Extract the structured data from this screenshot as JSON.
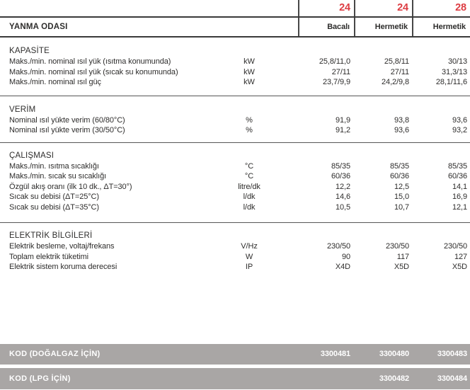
{
  "colors": {
    "accent_red": "#dd3d43",
    "bar_gray": "#a9a6a5",
    "text": "#2e2d2c"
  },
  "header": {
    "models": [
      "24",
      "24",
      "28"
    ],
    "row_label": "YANMA ODASI",
    "types": [
      "Bacalı",
      "Hermetik",
      "Hermetik"
    ]
  },
  "sections": [
    {
      "title": "KAPASİTE",
      "rows": [
        {
          "label": "Maks./min. nominal ısıl yük (ısıtma konumunda)",
          "unit": "kW",
          "values": [
            "25,8/11,0",
            "25,8/11",
            "30/13"
          ]
        },
        {
          "label": "Maks./min. nominal ısıl yük (sıcak su konumunda)",
          "unit": "kW",
          "values": [
            "27/11",
            "27/11",
            "31,3/13"
          ]
        },
        {
          "label": "Maks./min. nominal ısıl güç",
          "unit": "kW",
          "values": [
            "23,7/9,9",
            "24,2/9,8",
            "28,1/11,6"
          ]
        }
      ]
    },
    {
      "title": "VERİM",
      "rows": [
        {
          "label": "Nominal ısıl yükte verim (60/80°C)",
          "unit": "%",
          "values": [
            "91,9",
            "93,8",
            "93,6"
          ]
        },
        {
          "label": "Nominal ısıl yükte verim (30/50°C)",
          "unit": "%",
          "values": [
            "91,2",
            "93,6",
            "93,2"
          ]
        }
      ]
    },
    {
      "title": "ÇALIŞMASI",
      "rows": [
        {
          "label": "Maks./min. ısıtma sıcaklığı",
          "unit": "°C",
          "values": [
            "85/35",
            "85/35",
            "85/35"
          ]
        },
        {
          "label": "Maks./min. sıcak su sıcaklığı",
          "unit": "°C",
          "values": [
            "60/36",
            "60/36",
            "60/36"
          ]
        },
        {
          "label": "Özgül akış oranı (ilk 10 dk., ΔT=30°)",
          "unit": "litre/dk",
          "values": [
            "12,2",
            "12,5",
            "14,1"
          ]
        },
        {
          "label": "Sıcak su debisi (ΔT=25°C)",
          "unit": "l/dk",
          "values": [
            "14,6",
            "15,0",
            "16,9"
          ]
        },
        {
          "label": "Sıcak su debisi (ΔT=35°C)",
          "unit": "l/dk",
          "values": [
            "10,5",
            "10,7",
            "12,1"
          ]
        }
      ]
    },
    {
      "title": "ELEKTRİK BİLGİLERİ",
      "rows": [
        {
          "label": "Elektrik besleme, voltaj/frekans",
          "unit": "V/Hz",
          "values": [
            "230/50",
            "230/50",
            "230/50"
          ]
        },
        {
          "label": "Toplam elektrik tüketimi",
          "unit": "W",
          "values": [
            "90",
            "117",
            "127"
          ]
        },
        {
          "label": "Elektrik sistem koruma derecesi",
          "unit": "IP",
          "values": [
            "X4D",
            "X5D",
            "X5D"
          ]
        }
      ]
    }
  ],
  "code_bars": [
    {
      "label": "KOD (DOĞALGAZ İÇİN)",
      "values": [
        "3300481",
        "3300480",
        "3300483"
      ]
    },
    {
      "label": "KOD (LPG İÇİN)",
      "values": [
        "",
        "3300482",
        "3300484"
      ]
    }
  ]
}
